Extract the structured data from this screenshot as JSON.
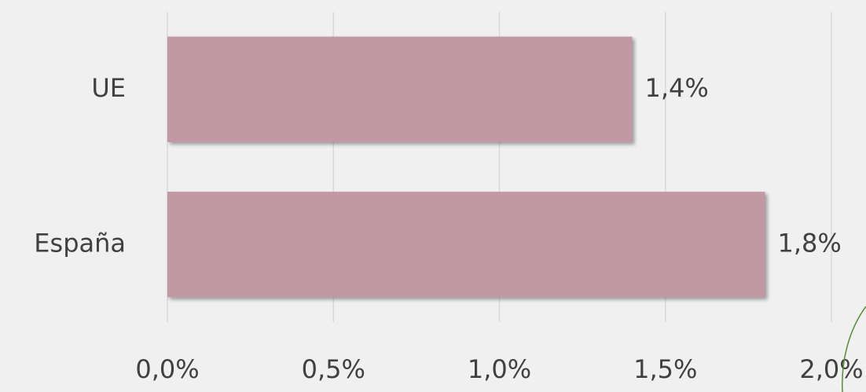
{
  "chart_data": {
    "type": "bar",
    "orientation": "horizontal",
    "categories": [
      "UE",
      "España"
    ],
    "values": [
      1.4,
      1.8
    ],
    "value_labels": [
      "1,4%",
      "1,8%"
    ],
    "color": "#c198a3",
    "xlim": [
      0,
      2
    ],
    "xticks": [
      {
        "value": 0,
        "label": "0,0%"
      },
      {
        "value": 0.5,
        "label": "0,5%"
      },
      {
        "value": 1,
        "label": "1,0%"
      },
      {
        "value": 1.5,
        "label": "1,5%"
      },
      {
        "value": 2,
        "label": "2,0%"
      }
    ],
    "grid": true
  }
}
